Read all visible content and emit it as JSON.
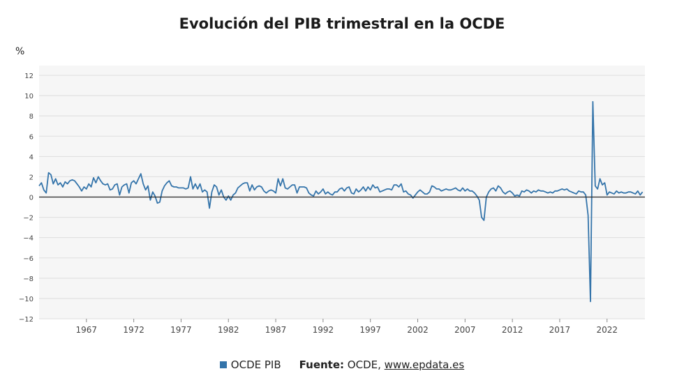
{
  "chart_data": {
    "type": "line",
    "title": "Evolución del PIB trimestral en la OCDE",
    "ylabel": "%",
    "ylim": [
      -12,
      12
    ],
    "xlim": [
      1962.0,
      2026.0
    ],
    "y_ticks": [
      -12,
      -10,
      -8,
      -6,
      -4,
      -2,
      0,
      2,
      4,
      6,
      8,
      10,
      12
    ],
    "x_ticks": [
      "1967",
      "1972",
      "1977",
      "1982",
      "1987",
      "1992",
      "1997",
      "2002",
      "2007",
      "2012",
      "2017",
      "2022"
    ],
    "grid": "horizontal",
    "legend": "bottom",
    "series": [
      {
        "name": "OCDE PIB",
        "color": "#3474aa",
        "points": [
          [
            1962.0,
            1.1
          ],
          [
            1962.25,
            1.4
          ],
          [
            1962.5,
            0.7
          ],
          [
            1962.75,
            0.4
          ],
          [
            1963.0,
            2.4
          ],
          [
            1963.25,
            2.2
          ],
          [
            1963.5,
            1.3
          ],
          [
            1963.75,
            1.8
          ],
          [
            1964.0,
            1.2
          ],
          [
            1964.25,
            1.4
          ],
          [
            1964.5,
            1.0
          ],
          [
            1964.75,
            1.5
          ],
          [
            1965.0,
            1.3
          ],
          [
            1965.25,
            1.6
          ],
          [
            1965.5,
            1.7
          ],
          [
            1965.75,
            1.6
          ],
          [
            1966.0,
            1.3
          ],
          [
            1966.25,
            1.0
          ],
          [
            1966.5,
            0.6
          ],
          [
            1966.75,
            1.0
          ],
          [
            1967.0,
            0.8
          ],
          [
            1967.25,
            1.3
          ],
          [
            1967.5,
            1.0
          ],
          [
            1967.75,
            1.9
          ],
          [
            1968.0,
            1.4
          ],
          [
            1968.25,
            2.0
          ],
          [
            1968.5,
            1.6
          ],
          [
            1968.75,
            1.3
          ],
          [
            1969.0,
            1.2
          ],
          [
            1969.25,
            1.3
          ],
          [
            1969.5,
            0.7
          ],
          [
            1969.75,
            0.8
          ],
          [
            1970.0,
            1.2
          ],
          [
            1970.25,
            1.3
          ],
          [
            1970.5,
            0.2
          ],
          [
            1970.75,
            1.0
          ],
          [
            1971.0,
            1.2
          ],
          [
            1971.25,
            1.3
          ],
          [
            1971.5,
            0.4
          ],
          [
            1971.75,
            1.4
          ],
          [
            1972.0,
            1.6
          ],
          [
            1972.25,
            1.3
          ],
          [
            1972.5,
            1.8
          ],
          [
            1972.75,
            2.3
          ],
          [
            1973.0,
            1.3
          ],
          [
            1973.25,
            0.7
          ],
          [
            1973.5,
            1.1
          ],
          [
            1973.75,
            -0.3
          ],
          [
            1974.0,
            0.5
          ],
          [
            1974.25,
            0.1
          ],
          [
            1974.5,
            -0.6
          ],
          [
            1974.75,
            -0.5
          ],
          [
            1975.0,
            0.6
          ],
          [
            1975.25,
            1.1
          ],
          [
            1975.5,
            1.4
          ],
          [
            1975.75,
            1.6
          ],
          [
            1976.0,
            1.1
          ],
          [
            1976.25,
            1.0
          ],
          [
            1976.5,
            1.0
          ],
          [
            1976.75,
            0.9
          ],
          [
            1977.0,
            0.9
          ],
          [
            1977.25,
            0.9
          ],
          [
            1977.5,
            0.8
          ],
          [
            1977.75,
            0.9
          ],
          [
            1978.0,
            2.0
          ],
          [
            1978.25,
            0.8
          ],
          [
            1978.5,
            1.3
          ],
          [
            1978.75,
            0.8
          ],
          [
            1979.0,
            1.3
          ],
          [
            1979.25,
            0.5
          ],
          [
            1979.5,
            0.7
          ],
          [
            1979.75,
            0.5
          ],
          [
            1980.0,
            -1.1
          ],
          [
            1980.25,
            0.5
          ],
          [
            1980.5,
            1.2
          ],
          [
            1980.75,
            1.0
          ],
          [
            1981.0,
            0.2
          ],
          [
            1981.25,
            0.7
          ],
          [
            1981.5,
            0.0
          ],
          [
            1981.75,
            -0.3
          ],
          [
            1982.0,
            0.1
          ],
          [
            1982.25,
            -0.3
          ],
          [
            1982.5,
            0.2
          ],
          [
            1982.75,
            0.4
          ],
          [
            1983.0,
            0.9
          ],
          [
            1983.25,
            1.1
          ],
          [
            1983.5,
            1.3
          ],
          [
            1983.75,
            1.4
          ],
          [
            1984.0,
            1.4
          ],
          [
            1984.25,
            0.6
          ],
          [
            1984.5,
            1.2
          ],
          [
            1984.75,
            0.7
          ],
          [
            1985.0,
            1.0
          ],
          [
            1985.25,
            1.1
          ],
          [
            1985.5,
            1.0
          ],
          [
            1985.75,
            0.6
          ],
          [
            1986.0,
            0.4
          ],
          [
            1986.25,
            0.6
          ],
          [
            1986.5,
            0.7
          ],
          [
            1986.75,
            0.6
          ],
          [
            1987.0,
            0.4
          ],
          [
            1987.25,
            1.8
          ],
          [
            1987.5,
            1.1
          ],
          [
            1987.75,
            1.8
          ],
          [
            1988.0,
            0.9
          ],
          [
            1988.25,
            0.8
          ],
          [
            1988.5,
            1.0
          ],
          [
            1988.75,
            1.2
          ],
          [
            1989.0,
            1.2
          ],
          [
            1989.25,
            0.4
          ],
          [
            1989.5,
            1.0
          ],
          [
            1989.75,
            1.0
          ],
          [
            1990.0,
            1.0
          ],
          [
            1990.25,
            0.9
          ],
          [
            1990.5,
            0.4
          ],
          [
            1990.75,
            0.2
          ],
          [
            1991.0,
            0.1
          ],
          [
            1991.25,
            0.6
          ],
          [
            1991.5,
            0.3
          ],
          [
            1991.75,
            0.5
          ],
          [
            1992.0,
            0.8
          ],
          [
            1992.25,
            0.3
          ],
          [
            1992.5,
            0.5
          ],
          [
            1992.75,
            0.3
          ],
          [
            1993.0,
            0.2
          ],
          [
            1993.25,
            0.5
          ],
          [
            1993.5,
            0.5
          ],
          [
            1993.75,
            0.8
          ],
          [
            1994.0,
            0.9
          ],
          [
            1994.25,
            0.6
          ],
          [
            1994.5,
            0.9
          ],
          [
            1994.75,
            1.0
          ],
          [
            1995.0,
            0.4
          ],
          [
            1995.25,
            0.3
          ],
          [
            1995.5,
            0.8
          ],
          [
            1995.75,
            0.5
          ],
          [
            1996.0,
            0.7
          ],
          [
            1996.25,
            1.0
          ],
          [
            1996.5,
            0.6
          ],
          [
            1996.75,
            1.0
          ],
          [
            1997.0,
            0.7
          ],
          [
            1997.25,
            1.2
          ],
          [
            1997.5,
            0.9
          ],
          [
            1997.75,
            1.0
          ],
          [
            1998.0,
            0.5
          ],
          [
            1998.25,
            0.6
          ],
          [
            1998.5,
            0.7
          ],
          [
            1998.75,
            0.8
          ],
          [
            1999.0,
            0.8
          ],
          [
            1999.25,
            0.7
          ],
          [
            1999.5,
            1.2
          ],
          [
            1999.75,
            1.2
          ],
          [
            2000.0,
            1.0
          ],
          [
            2000.25,
            1.3
          ],
          [
            2000.5,
            0.5
          ],
          [
            2000.75,
            0.6
          ],
          [
            2001.0,
            0.3
          ],
          [
            2001.25,
            0.2
          ],
          [
            2001.5,
            -0.1
          ],
          [
            2001.75,
            0.2
          ],
          [
            2002.0,
            0.5
          ],
          [
            2002.25,
            0.7
          ],
          [
            2002.5,
            0.5
          ],
          [
            2002.75,
            0.3
          ],
          [
            2003.0,
            0.3
          ],
          [
            2003.25,
            0.5
          ],
          [
            2003.5,
            1.1
          ],
          [
            2003.75,
            1.0
          ],
          [
            2004.0,
            0.8
          ],
          [
            2004.25,
            0.8
          ],
          [
            2004.5,
            0.6
          ],
          [
            2004.75,
            0.7
          ],
          [
            2005.0,
            0.8
          ],
          [
            2005.25,
            0.7
          ],
          [
            2005.5,
            0.7
          ],
          [
            2005.75,
            0.8
          ],
          [
            2006.0,
            0.9
          ],
          [
            2006.25,
            0.7
          ],
          [
            2006.5,
            0.6
          ],
          [
            2006.75,
            0.9
          ],
          [
            2007.0,
            0.6
          ],
          [
            2007.25,
            0.8
          ],
          [
            2007.5,
            0.6
          ],
          [
            2007.75,
            0.6
          ],
          [
            2008.0,
            0.4
          ],
          [
            2008.25,
            0.1
          ],
          [
            2008.5,
            -0.3
          ],
          [
            2008.75,
            -2.0
          ],
          [
            2009.0,
            -2.3
          ],
          [
            2009.25,
            0.0
          ],
          [
            2009.5,
            0.5
          ],
          [
            2009.75,
            0.8
          ],
          [
            2010.0,
            0.9
          ],
          [
            2010.25,
            0.6
          ],
          [
            2010.5,
            1.1
          ],
          [
            2010.75,
            0.9
          ],
          [
            2011.0,
            0.5
          ],
          [
            2011.25,
            0.3
          ],
          [
            2011.5,
            0.5
          ],
          [
            2011.75,
            0.6
          ],
          [
            2012.0,
            0.4
          ],
          [
            2012.25,
            0.1
          ],
          [
            2012.5,
            0.2
          ],
          [
            2012.75,
            0.1
          ],
          [
            2013.0,
            0.6
          ],
          [
            2013.25,
            0.5
          ],
          [
            2013.5,
            0.7
          ],
          [
            2013.75,
            0.6
          ],
          [
            2014.0,
            0.4
          ],
          [
            2014.25,
            0.6
          ],
          [
            2014.5,
            0.5
          ],
          [
            2014.75,
            0.7
          ],
          [
            2015.0,
            0.6
          ],
          [
            2015.25,
            0.6
          ],
          [
            2015.5,
            0.5
          ],
          [
            2015.75,
            0.4
          ],
          [
            2016.0,
            0.5
          ],
          [
            2016.25,
            0.4
          ],
          [
            2016.5,
            0.6
          ],
          [
            2016.75,
            0.6
          ],
          [
            2017.0,
            0.7
          ],
          [
            2017.25,
            0.8
          ],
          [
            2017.5,
            0.7
          ],
          [
            2017.75,
            0.8
          ],
          [
            2018.0,
            0.6
          ],
          [
            2018.25,
            0.5
          ],
          [
            2018.5,
            0.4
          ],
          [
            2018.75,
            0.3
          ],
          [
            2019.0,
            0.6
          ],
          [
            2019.25,
            0.5
          ],
          [
            2019.5,
            0.5
          ],
          [
            2019.75,
            0.2
          ],
          [
            2020.0,
            -1.8
          ],
          [
            2020.25,
            -10.3
          ],
          [
            2020.5,
            9.4
          ],
          [
            2020.75,
            1.1
          ],
          [
            2021.0,
            0.8
          ],
          [
            2021.25,
            1.8
          ],
          [
            2021.5,
            1.2
          ],
          [
            2021.75,
            1.4
          ],
          [
            2022.0,
            0.2
          ],
          [
            2022.25,
            0.5
          ],
          [
            2022.5,
            0.4
          ],
          [
            2022.75,
            0.3
          ],
          [
            2023.0,
            0.6
          ],
          [
            2023.25,
            0.4
          ],
          [
            2023.5,
            0.5
          ],
          [
            2023.75,
            0.4
          ],
          [
            2024.0,
            0.4
          ],
          [
            2024.25,
            0.5
          ],
          [
            2024.5,
            0.5
          ],
          [
            2024.75,
            0.4
          ],
          [
            2025.0,
            0.3
          ],
          [
            2025.25,
            0.6
          ],
          [
            2025.5,
            0.2
          ],
          [
            2025.75,
            0.5
          ]
        ]
      }
    ]
  },
  "legend": {
    "series_label": "OCDE PIB",
    "source_label": "Fuente:",
    "source_text": " OCDE, ",
    "source_link": "www.epdata.es"
  }
}
